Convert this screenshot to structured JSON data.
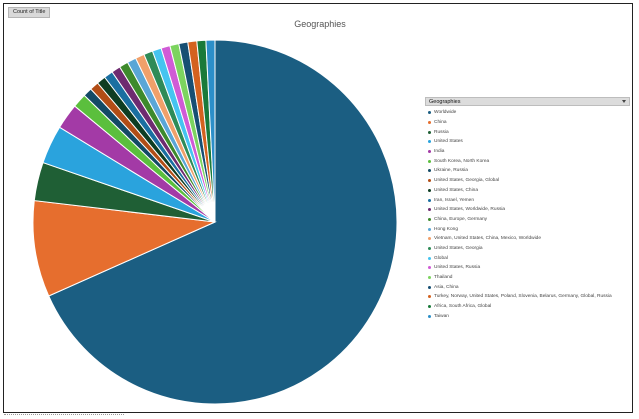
{
  "field_chip": "Count of Title",
  "legend_header": "Geographies",
  "chart_data": {
    "type": "pie",
    "title": "Geographies",
    "slices": [
      {
        "label": "Worldwide",
        "value": 120,
        "color": "#1b5e82"
      },
      {
        "label": "China",
        "value": 15,
        "color": "#e66e2e"
      },
      {
        "label": "Russia",
        "value": 6,
        "color": "#1f5f35"
      },
      {
        "label": "United States",
        "value": 6,
        "color": "#2aa3dd"
      },
      {
        "label": "India",
        "value": 4,
        "color": "#a33aa6"
      },
      {
        "label": "South Korea, North Korea",
        "value": 2.2,
        "color": "#5bbf3d"
      },
      {
        "label": "Ukraine, Russia",
        "value": 1.4,
        "color": "#134a66"
      },
      {
        "label": "United States, Georgia, Global",
        "value": 1.4,
        "color": "#b24d16"
      },
      {
        "label": "United States, China",
        "value": 1.4,
        "color": "#0e3d22"
      },
      {
        "label": "Iran, Israel, Yemen",
        "value": 1.4,
        "color": "#1a6fa1"
      },
      {
        "label": "United States, Worldwide, Russia",
        "value": 1.4,
        "color": "#6e2b70"
      },
      {
        "label": "China, Europe, Germany",
        "value": 1.4,
        "color": "#3d8a2c"
      },
      {
        "label": "Hong Kong",
        "value": 1.4,
        "color": "#5aa6d6"
      },
      {
        "label": "Vietnam, United States, China, Mexico, Worldwide",
        "value": 1.4,
        "color": "#f0a06a"
      },
      {
        "label": "United States, Georgia",
        "value": 1.4,
        "color": "#2e8b57"
      },
      {
        "label": "Global",
        "value": 1.4,
        "color": "#45c4f0"
      },
      {
        "label": "United States, Russia",
        "value": 1.4,
        "color": "#d05bd6"
      },
      {
        "label": "Thailand",
        "value": 1.4,
        "color": "#7cd45f"
      },
      {
        "label": "Asia, China",
        "value": 1.4,
        "color": "#174f73"
      },
      {
        "label": "Turkey, Norway, United States, Poland, Slovenia, Belarus, Germany, Global, Russia",
        "value": 1.4,
        "color": "#d4621f"
      },
      {
        "label": "Africa, South Africa, Global",
        "value": 1.4,
        "color": "#1a7a3a"
      },
      {
        "label": "Taiwan",
        "value": 1.4,
        "color": "#2c8fc9"
      }
    ]
  }
}
